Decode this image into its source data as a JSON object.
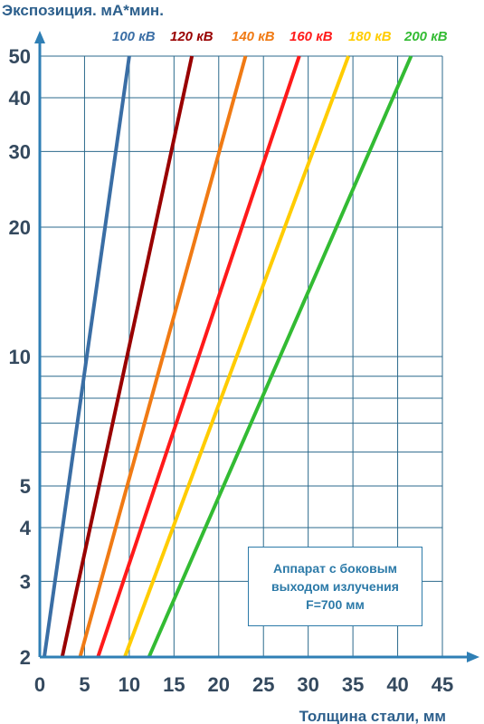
{
  "chart_data": {
    "type": "line",
    "ylabel": "Экспозиция. мА*мин.",
    "xlabel": "Толщина стали, мм",
    "x_ticks": [
      0,
      5,
      10,
      15,
      20,
      25,
      30,
      35,
      40,
      45
    ],
    "y_ticks": [
      2,
      3,
      4,
      5,
      10,
      20,
      30,
      40,
      50
    ],
    "xlim": [
      0,
      45
    ],
    "ylim": [
      2,
      50
    ],
    "y_scale": "log",
    "grid": true,
    "series": [
      {
        "name": "100 кВ",
        "color": "#3a6ea5",
        "x": [
          0.5,
          10
        ],
        "y": [
          2,
          50
        ]
      },
      {
        "name": "120 кВ",
        "color": "#990000",
        "x": [
          2.5,
          17
        ],
        "y": [
          2,
          50
        ]
      },
      {
        "name": "140 кВ",
        "color": "#f07a14",
        "x": [
          4.5,
          23
        ],
        "y": [
          2,
          50
        ]
      },
      {
        "name": "160 кВ",
        "color": "#ff1a1a",
        "x": [
          6.5,
          29
        ],
        "y": [
          2,
          50
        ]
      },
      {
        "name": "180 кВ",
        "color": "#ffcc00",
        "x": [
          9.5,
          34.5
        ],
        "y": [
          2,
          50
        ]
      },
      {
        "name": "200 кВ",
        "color": "#33bb33",
        "x": [
          12.2,
          41.5
        ],
        "y": [
          2,
          50
        ]
      }
    ]
  },
  "note": {
    "line1": "Аппарат с боковым",
    "line2": "выходом излучения",
    "line3": "F=700 мм"
  }
}
